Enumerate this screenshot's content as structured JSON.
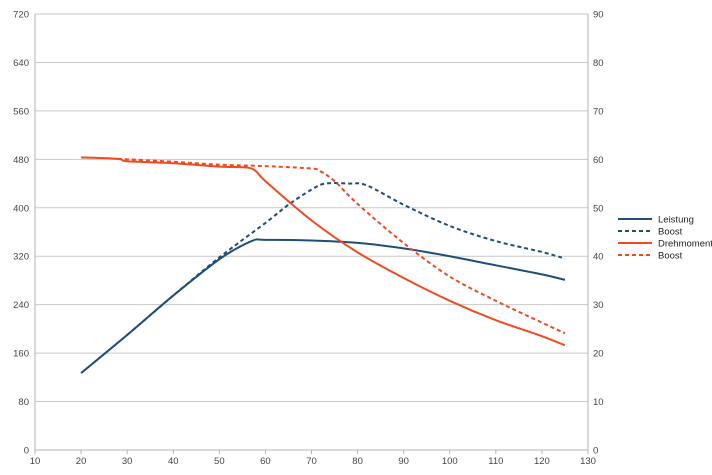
{
  "chart_data": {
    "type": "line",
    "title": "",
    "xlabel": "",
    "ylabel": "",
    "xlim": [
      10,
      130
    ],
    "ylim_left": [
      0,
      720
    ],
    "ylim_right": [
      0,
      90
    ],
    "x_ticks": [
      10,
      20,
      30,
      40,
      50,
      60,
      70,
      80,
      90,
      100,
      110,
      120,
      130
    ],
    "y_ticks_left": [
      0,
      80,
      160,
      240,
      320,
      400,
      480,
      560,
      640,
      720
    ],
    "y_ticks_right": [
      0,
      10,
      20,
      30,
      40,
      50,
      60,
      70,
      80,
      90
    ],
    "grid": true,
    "legend_position": "right",
    "series": [
      {
        "name": "Leistung",
        "axis": "left",
        "color": "#1f4e79",
        "dash": "solid",
        "x": [
          20,
          30,
          40,
          50,
          57,
          60,
          70,
          80,
          90,
          100,
          110,
          120,
          125
        ],
        "y": [
          127,
          190,
          255,
          315,
          345,
          347,
          346,
          342,
          333,
          320,
          305,
          290,
          281
        ]
      },
      {
        "name": "Boost",
        "axis": "left",
        "color": "#1f4e79",
        "dash": "dashed",
        "x": [
          30,
          40,
          50,
          60,
          65,
          70,
          73,
          78,
          82,
          90,
          100,
          110,
          120,
          125
        ],
        "y": [
          190,
          255,
          318,
          375,
          405,
          430,
          440,
          440,
          437,
          405,
          370,
          345,
          327,
          316
        ]
      },
      {
        "name": "Drehmoment",
        "axis": "right",
        "color": "#ee4b20",
        "dash": "solid",
        "x": [
          20,
          28,
          30,
          40,
          50,
          56,
          58,
          60,
          70,
          80,
          90,
          100,
          110,
          120,
          125
        ],
        "y": [
          60.4,
          60.1,
          59.6,
          59.2,
          58.5,
          58.3,
          57.5,
          55.5,
          47.4,
          40.8,
          35.5,
          30.8,
          26.8,
          23.5,
          21.6
        ]
      },
      {
        "name": "Boost",
        "axis": "right",
        "color": "#ee4b20",
        "dash": "dashed",
        "x": [
          28,
          40,
          50,
          60,
          70,
          72,
          75,
          80,
          90,
          100,
          110,
          120,
          125
        ],
        "y": [
          60.1,
          59.5,
          58.9,
          58.6,
          58.1,
          57.5,
          55.5,
          50.8,
          42.7,
          35.8,
          30.8,
          26.3,
          24.1
        ]
      }
    ]
  }
}
